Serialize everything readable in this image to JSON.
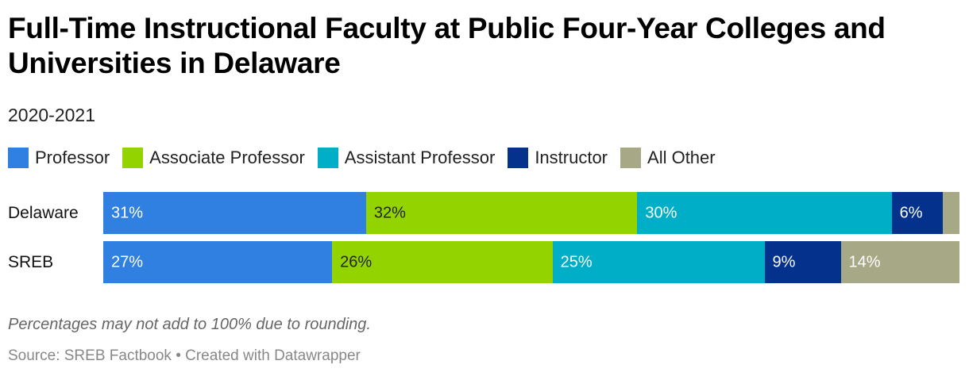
{
  "title": "Full-Time Instructional Faculty at Public Four-Year Colleges and Universities in Delaware",
  "subtitle": "2020-2021",
  "note": "Percentages may not add to 100% due to rounding.",
  "source": "Source: SREB Factbook • Created with Datawrapper",
  "colors": {
    "Professor": "#2f80e0",
    "Associate Professor": "#93d400",
    "Assistant Professor": "#00aec7",
    "Instructor": "#03318c",
    "All Other": "#a6a886"
  },
  "chart_data": {
    "type": "bar",
    "orientation": "horizontal",
    "stacked": true,
    "categories": [
      "Delaware",
      "SREB"
    ],
    "series": [
      {
        "name": "Professor",
        "values": [
          31,
          27
        ],
        "labels": [
          "31%",
          "27%"
        ]
      },
      {
        "name": "Associate Professor",
        "values": [
          32,
          26
        ],
        "labels": [
          "32%",
          "26%"
        ]
      },
      {
        "name": "Assistant Professor",
        "values": [
          30,
          25
        ],
        "labels": [
          "30%",
          "25%"
        ]
      },
      {
        "name": "Instructor",
        "values": [
          6,
          9
        ],
        "labels": [
          "6%",
          "9%"
        ]
      },
      {
        "name": "All Other",
        "values": [
          2,
          14
        ],
        "labels": [
          "",
          "14%"
        ]
      }
    ],
    "xlim": [
      0,
      100
    ],
    "legend": "top",
    "grid": false
  }
}
